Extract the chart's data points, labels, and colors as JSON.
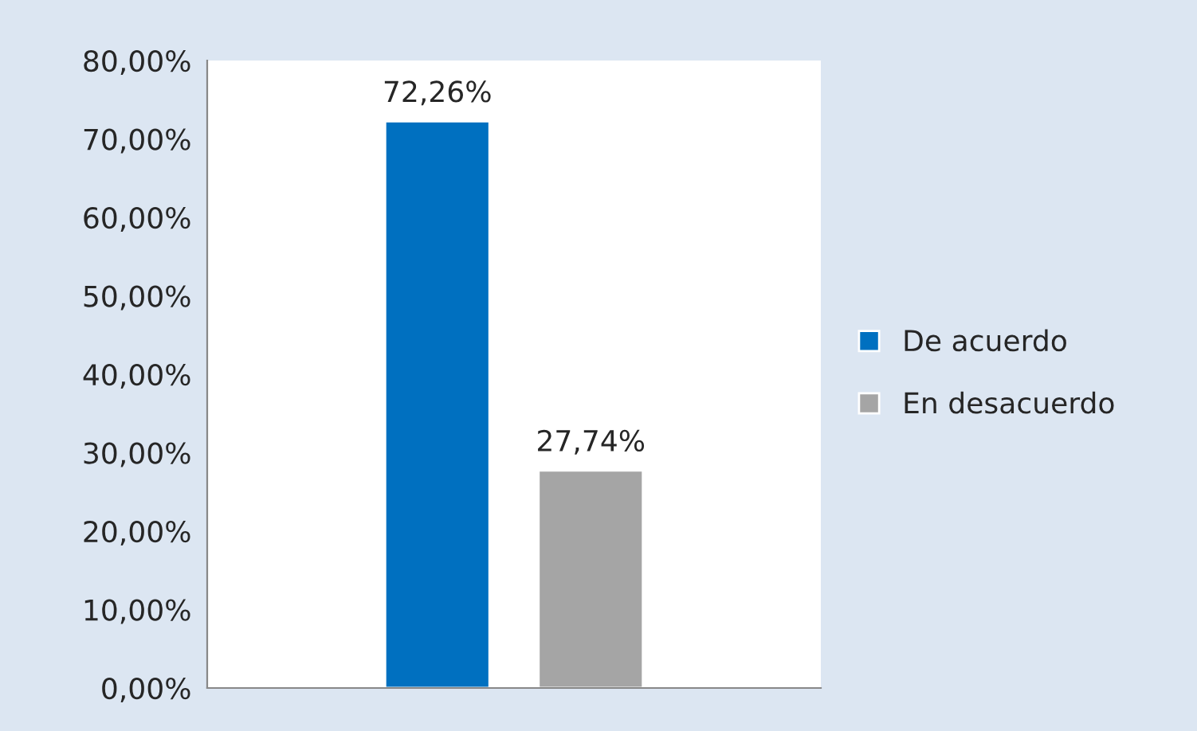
{
  "chart_data": {
    "type": "bar",
    "categories": [
      null
    ],
    "series": [
      {
        "name": "De acuerdo",
        "color": "#0070c0",
        "values": [
          72.26
        ],
        "value_labels": [
          "72,26%"
        ]
      },
      {
        "name": "En desacuerdo",
        "color": "#a5a5a5",
        "values": [
          27.74
        ],
        "value_labels": [
          "27,74%"
        ]
      }
    ],
    "ylim": [
      0,
      80
    ],
    "yticks": [
      {
        "value": 0,
        "label": "0,00%"
      },
      {
        "value": 10,
        "label": "10,00%"
      },
      {
        "value": 20,
        "label": "20,00%"
      },
      {
        "value": 30,
        "label": "30,00%"
      },
      {
        "value": 40,
        "label": "40,00%"
      },
      {
        "value": 50,
        "label": "50,00%"
      },
      {
        "value": 60,
        "label": "60,00%"
      },
      {
        "value": 70,
        "label": "70,00%"
      },
      {
        "value": 80,
        "label": "80,00%"
      }
    ],
    "grid": false,
    "legend": "right"
  }
}
